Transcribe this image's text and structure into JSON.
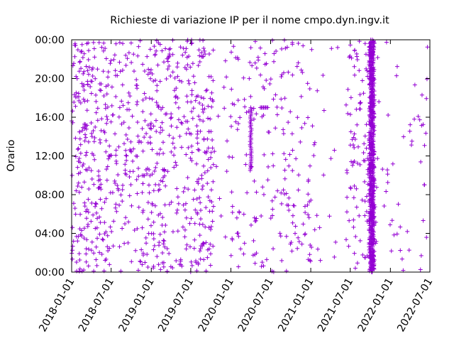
{
  "chart_data": {
    "type": "scatter",
    "title": "Richieste di variazione IP per il nome cmpo.dyn.ingv.it",
    "xlabel": "",
    "ylabel": "Orario",
    "x_ticks": [
      "2018-01-01",
      "2018-07-01",
      "2019-01-01",
      "2019-07-01",
      "2020-01-01",
      "2020-07-01",
      "2021-01-01",
      "2021-07-01",
      "2022-01-01",
      "2022-07-01"
    ],
    "y_ticks": [
      "00:00",
      "04:00",
      "08:00",
      "12:00",
      "16:00",
      "20:00",
      "00:00"
    ],
    "xlim": [
      "2018-01-01",
      "2022-07-01"
    ],
    "ylim_hours": [
      0,
      24
    ],
    "marker": "plus",
    "color": "#9400d3",
    "density_notes": "Points are dense and scattered across all hours from 2018-01 to 2019-10; sparse gap 2019-10 to 2020-01; scattered 2020-01 to 2021-01; sparse 2021-01 to 2021-06; very dense vertical band around 2021-10; sparse clusters after 2022-01.",
    "clusters": [
      {
        "from": "2018-01-01",
        "to": "2018-07-01",
        "hours": [
          0,
          24
        ],
        "count": 260
      },
      {
        "from": "2018-07-01",
        "to": "2019-01-01",
        "hours": [
          0,
          24
        ],
        "count": 180
      },
      {
        "from": "2019-01-01",
        "to": "2019-07-01",
        "hours": [
          0,
          24
        ],
        "count": 200
      },
      {
        "from": "2019-07-01",
        "to": "2019-10-15",
        "hours": [
          0,
          24
        ],
        "count": 150
      },
      {
        "from": "2019-10-15",
        "to": "2020-01-01",
        "hours": [
          0,
          24
        ],
        "count": 14
      },
      {
        "from": "2020-01-01",
        "to": "2020-07-01",
        "hours": [
          0,
          24
        ],
        "count": 90
      },
      {
        "from": "2020-07-01",
        "to": "2021-01-01",
        "hours": [
          0,
          24
        ],
        "count": 110
      },
      {
        "from": "2021-01-01",
        "to": "2021-06-15",
        "hours": [
          0,
          24
        ],
        "count": 25
      },
      {
        "from": "2021-06-15",
        "to": "2021-09-25",
        "hours": [
          0,
          24
        ],
        "count": 90
      },
      {
        "from": "2021-09-25",
        "to": "2021-10-20",
        "hours": [
          0,
          24
        ],
        "count": 420
      },
      {
        "from": "2021-10-20",
        "to": "2022-07-01",
        "hours": [
          0,
          24
        ],
        "count": 55
      }
    ],
    "streaks": [
      {
        "date": "2020-04-01",
        "hour_from": 10.5,
        "hour_to": 17.0
      },
      {
        "date": "2020-05-15",
        "hour_from": 17.0,
        "hour_to": 17.0
      },
      {
        "date": "2021-10-05",
        "hour_from": 0.0,
        "hour_to": 24.0
      },
      {
        "date": "2021-10-12",
        "hour_from": 0.0,
        "hour_to": 24.0
      }
    ]
  }
}
